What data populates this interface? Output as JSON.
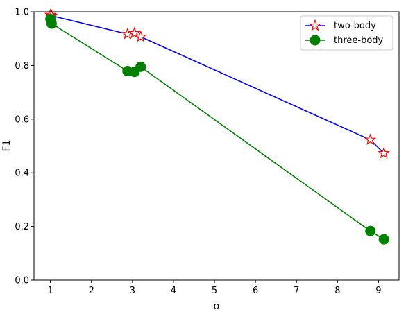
{
  "chart_data": {
    "type": "line",
    "title": "",
    "xlabel": "σ",
    "ylabel": "F1",
    "xlim": [
      0.6,
      9.5
    ],
    "ylim": [
      0.0,
      1.0
    ],
    "xticks": [
      1,
      2,
      3,
      4,
      5,
      6,
      7,
      8,
      9
    ],
    "yticks": [
      0.0,
      0.2,
      0.4,
      0.6,
      0.8,
      1.0
    ],
    "grid": false,
    "legend": {
      "placement": "top-right"
    },
    "series": [
      {
        "name": "two-body",
        "line_color": "#0000ff",
        "marker": "star",
        "marker_edge_color": "#ff0000",
        "marker_face_color": "#ffffff",
        "x": [
          1.0,
          1.03,
          2.88,
          3.05,
          3.2,
          8.8,
          9.13
        ],
        "y": [
          0.988,
          0.985,
          0.917,
          0.92,
          0.907,
          0.523,
          0.473
        ]
      },
      {
        "name": "three-body",
        "line_color": "#008000",
        "marker": "circle",
        "marker_edge_color": "#008000",
        "marker_face_color": "#008000",
        "x": [
          1.0,
          1.03,
          2.88,
          3.05,
          3.2,
          8.8,
          9.13
        ],
        "y": [
          0.973,
          0.956,
          0.779,
          0.776,
          0.795,
          0.183,
          0.152
        ]
      }
    ]
  }
}
